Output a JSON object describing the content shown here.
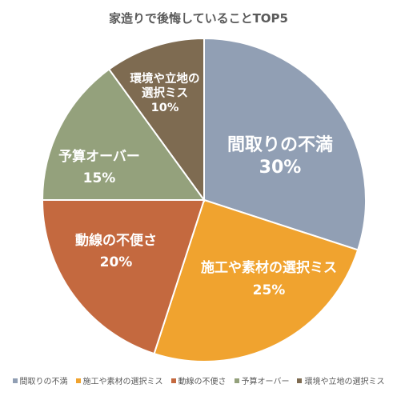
{
  "chart_data": {
    "type": "pie",
    "title": "家造りで後悔していることTOP5",
    "legend_position": "bottom",
    "slices": [
      {
        "name": "間取りの不満",
        "label_lines": [
          "間取りの不満"
        ],
        "percent_label": "30%",
        "value": 30,
        "color": "#919fb4"
      },
      {
        "name": "施工や素材の選択ミス",
        "label_lines": [
          "施工や素材の選択ミス"
        ],
        "percent_label": "25%",
        "value": 25,
        "color": "#f0a32f"
      },
      {
        "name": "動線の不便さ",
        "label_lines": [
          "動線の不便さ"
        ],
        "percent_label": "20%",
        "value": 20,
        "color": "#c4693f"
      },
      {
        "name": "予算オーバー",
        "label_lines": [
          "予算オーバー"
        ],
        "percent_label": "15%",
        "value": 15,
        "color": "#94a17c"
      },
      {
        "name": "環境や立地の選択ミス",
        "label_lines": [
          "環境や立地の",
          "選択ミス"
        ],
        "percent_label": "10%",
        "value": 10,
        "color": "#7e6b51"
      }
    ]
  }
}
